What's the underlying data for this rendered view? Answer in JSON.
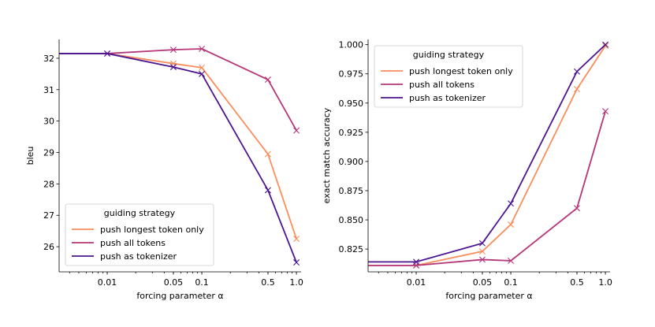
{
  "chart_data": [
    {
      "type": "line",
      "xscale": "log",
      "xlabel": "forcing parameter α",
      "ylabel": "bleu",
      "xlim": [
        0.0031,
        1.12
      ],
      "ylim": [
        25.2,
        32.6
      ],
      "xticks": [
        0.01,
        0.05,
        0.1,
        0.5,
        1.0
      ],
      "xtick_labels": [
        "0.01",
        "0.05",
        "0.1",
        "0.5",
        "1.0"
      ],
      "yticks": [
        26,
        27,
        28,
        29,
        30,
        31,
        32
      ],
      "ytick_labels": [
        "26",
        "27",
        "28",
        "29",
        "30",
        "31",
        "32"
      ],
      "legend": {
        "title": "guiding strategy",
        "location": "lower-left"
      },
      "grid": false,
      "series": [
        {
          "name": "push longest token only",
          "color": "#f98e5c",
          "x": [
            0.0031,
            0.01,
            0.05,
            0.1,
            0.5,
            1.0
          ],
          "y": [
            32.15,
            32.15,
            31.83,
            31.7,
            28.95,
            26.25
          ]
        },
        {
          "name": "push all tokens",
          "color": "#b5367a",
          "x": [
            0.0031,
            0.01,
            0.05,
            0.1,
            0.5,
            1.0
          ],
          "y": [
            32.15,
            32.15,
            32.27,
            32.3,
            31.32,
            29.7
          ]
        },
        {
          "name": "push as tokenizer",
          "color": "#4b1490",
          "x": [
            0.0031,
            0.01,
            0.05,
            0.1,
            0.5,
            1.0
          ],
          "y": [
            32.15,
            32.15,
            31.72,
            31.5,
            27.8,
            25.5
          ]
        }
      ]
    },
    {
      "type": "line",
      "xscale": "log",
      "xlabel": "forcing parameter α",
      "ylabel": "exact match accuracy",
      "xlim": [
        0.0031,
        1.12
      ],
      "ylim": [
        0.8055,
        1.0045
      ],
      "xticks": [
        0.01,
        0.05,
        0.1,
        0.5,
        1.0
      ],
      "xtick_labels": [
        "0.01",
        "0.05",
        "0.1",
        "0.5",
        "1.0"
      ],
      "yticks": [
        0.825,
        0.85,
        0.875,
        0.9,
        0.925,
        0.95,
        0.975,
        1.0
      ],
      "ytick_labels": [
        "0.825",
        "0.850",
        "0.875",
        "0.900",
        "0.925",
        "0.950",
        "0.975",
        "1.000"
      ],
      "legend": {
        "title": "guiding strategy",
        "location": "upper-left"
      },
      "grid": false,
      "series": [
        {
          "name": "push longest token only",
          "color": "#f98e5c",
          "x": [
            0.0031,
            0.01,
            0.05,
            0.1,
            0.5,
            1.0
          ],
          "y": [
            0.811,
            0.811,
            0.823,
            0.846,
            0.962,
            0.999
          ]
        },
        {
          "name": "push all tokens",
          "color": "#b5367a",
          "x": [
            0.0031,
            0.01,
            0.05,
            0.1,
            0.5,
            1.0
          ],
          "y": [
            0.811,
            0.811,
            0.816,
            0.815,
            0.86,
            0.943
          ]
        },
        {
          "name": "push as tokenizer",
          "color": "#4b1490",
          "x": [
            0.0031,
            0.01,
            0.05,
            0.1,
            0.5,
            1.0
          ],
          "y": [
            0.814,
            0.814,
            0.83,
            0.864,
            0.977,
            1.0
          ]
        }
      ]
    }
  ]
}
